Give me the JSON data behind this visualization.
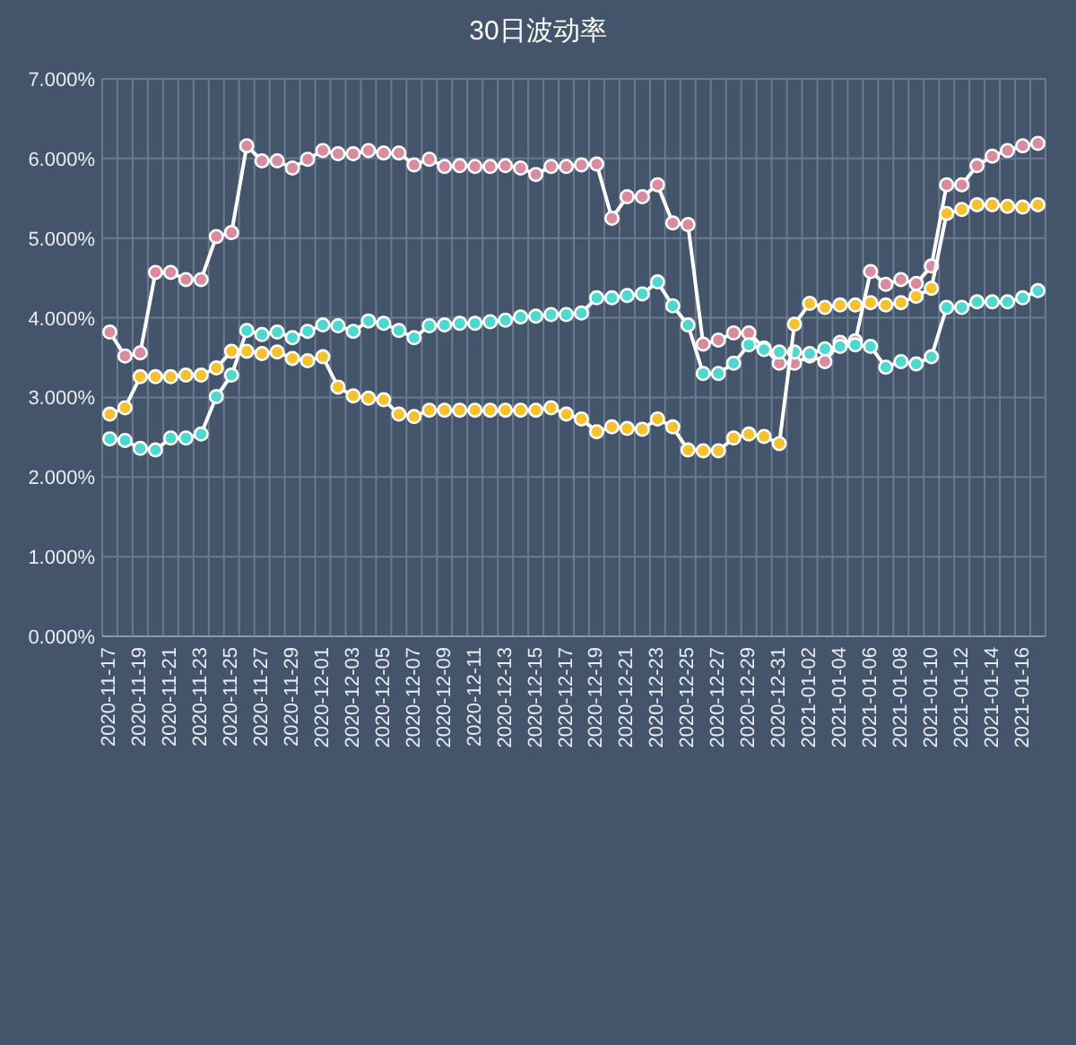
{
  "chart_data": {
    "type": "line",
    "title": "30日波动率",
    "categories": [
      "2020-11-17",
      null,
      "2020-11-19",
      null,
      "2020-11-21",
      null,
      "2020-11-23",
      null,
      "2020-11-25",
      null,
      "2020-11-27",
      null,
      "2020-11-29",
      null,
      "2020-12-01",
      null,
      "2020-12-03",
      null,
      "2020-12-05",
      null,
      "2020-12-07",
      null,
      "2020-12-09",
      null,
      "2020-12-11",
      null,
      "2020-12-13",
      null,
      "2020-12-15",
      null,
      "2020-12-17",
      null,
      "2020-12-19",
      null,
      "2020-12-21",
      null,
      "2020-12-23",
      null,
      "2020-12-25",
      null,
      "2020-12-27",
      null,
      "2020-12-29",
      null,
      "2020-12-31",
      null,
      "2021-01-02",
      null,
      "2021-01-04",
      null,
      "2021-01-06",
      null,
      "2021-01-08",
      null,
      "2021-01-10",
      null,
      "2021-01-12",
      null,
      "2021-01-14",
      null,
      "2021-01-16",
      null
    ],
    "series": [
      {
        "color": "#d98ba0",
        "values": [
          3.82,
          3.52,
          3.56,
          4.57,
          4.57,
          4.48,
          4.48,
          5.02,
          5.07,
          6.16,
          5.97,
          5.97,
          5.88,
          5.99,
          6.1,
          6.06,
          6.06,
          6.1,
          6.07,
          6.07,
          5.92,
          5.99,
          5.9,
          5.91,
          5.9,
          5.9,
          5.91,
          5.88,
          5.8,
          5.9,
          5.9,
          5.92,
          5.93,
          5.25,
          5.52,
          5.52,
          5.67,
          5.19,
          5.17,
          3.67,
          3.72,
          3.81,
          3.81,
          3.62,
          3.43,
          3.43,
          3.52,
          3.45,
          3.69,
          3.71,
          4.58,
          4.42,
          4.48,
          4.43,
          4.65,
          5.67,
          5.67,
          5.91,
          6.03,
          6.1,
          6.16,
          6.19
        ]
      },
      {
        "color": "#4fd8d0",
        "values": [
          2.48,
          2.46,
          2.36,
          2.34,
          2.49,
          2.49,
          2.54,
          3.01,
          3.28,
          3.84,
          3.79,
          3.82,
          3.75,
          3.83,
          3.91,
          3.9,
          3.83,
          3.96,
          3.93,
          3.84,
          3.75,
          3.9,
          3.91,
          3.93,
          3.93,
          3.95,
          3.97,
          4.01,
          4.02,
          4.04,
          4.04,
          4.06,
          4.25,
          4.25,
          4.28,
          4.3,
          4.45,
          4.15,
          3.91,
          3.3,
          3.3,
          3.43,
          3.66,
          3.6,
          3.57,
          3.57,
          3.55,
          3.61,
          3.64,
          3.66,
          3.64,
          3.38,
          3.45,
          3.42,
          3.51,
          4.13,
          4.13,
          4.2,
          4.2,
          4.2,
          4.25,
          4.34
        ]
      },
      {
        "color": "#f5c12c",
        "values": [
          2.79,
          2.87,
          3.26,
          3.26,
          3.26,
          3.28,
          3.28,
          3.37,
          3.58,
          3.58,
          3.55,
          3.57,
          3.49,
          3.46,
          3.51,
          3.13,
          3.02,
          2.99,
          2.97,
          2.79,
          2.76,
          2.84,
          2.84,
          2.84,
          2.84,
          2.84,
          2.84,
          2.84,
          2.84,
          2.87,
          2.79,
          2.73,
          2.57,
          2.63,
          2.61,
          2.6,
          2.73,
          2.63,
          2.34,
          2.33,
          2.33,
          2.49,
          2.54,
          2.51,
          2.42,
          3.92,
          4.18,
          4.13,
          4.16,
          4.16,
          4.19,
          4.16,
          4.19,
          4.27,
          4.37,
          5.31,
          5.36,
          5.42,
          5.42,
          5.4,
          5.39,
          5.42
        ]
      }
    ],
    "ylim": [
      0,
      7
    ],
    "yticks": [
      {
        "value": 0,
        "label": "0.000%"
      },
      {
        "value": 1,
        "label": "1.000%"
      },
      {
        "value": 2,
        "label": "2.000%"
      },
      {
        "value": 3,
        "label": "3.000%"
      },
      {
        "value": 4,
        "label": "4.000%"
      },
      {
        "value": 5,
        "label": "5.000%"
      },
      {
        "value": 6,
        "label": "6.000%"
      },
      {
        "value": 7,
        "label": "7.000%"
      }
    ],
    "grid": true,
    "marker": "circle",
    "line_style": "solid"
  }
}
